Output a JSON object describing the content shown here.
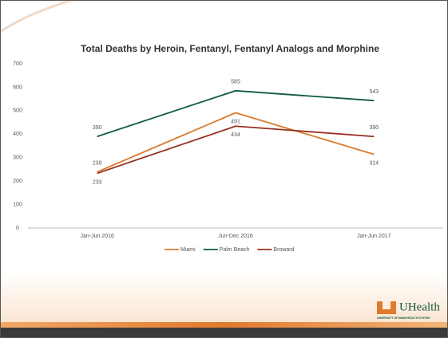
{
  "chart_data": {
    "type": "line",
    "title": "Total Deaths by Heroin, Fentanyl, Fentanyl Analogs and Morphine",
    "categories": [
      "Jan-Jun 2016",
      "Jun-Dec 2016",
      "Jan-Jun 2017"
    ],
    "series": [
      {
        "name": "Miami",
        "color": "#d97b30",
        "values": [
          239,
          491,
          314
        ]
      },
      {
        "name": "Palm Beach",
        "color": "#0f5a3e",
        "values": [
          390,
          585,
          543
        ]
      },
      {
        "name": "Broward",
        "color": "#97301f",
        "values": [
          233,
          434,
          390
        ]
      }
    ],
    "ylim": [
      0,
      700
    ],
    "yticks": [
      0,
      100,
      200,
      300,
      400,
      500,
      600,
      700
    ],
    "legend": "bottom"
  },
  "logo": {
    "name": "UHealth",
    "subtitle": "UNIVERSITY OF MIAMI HEALTH SYSTEM"
  }
}
